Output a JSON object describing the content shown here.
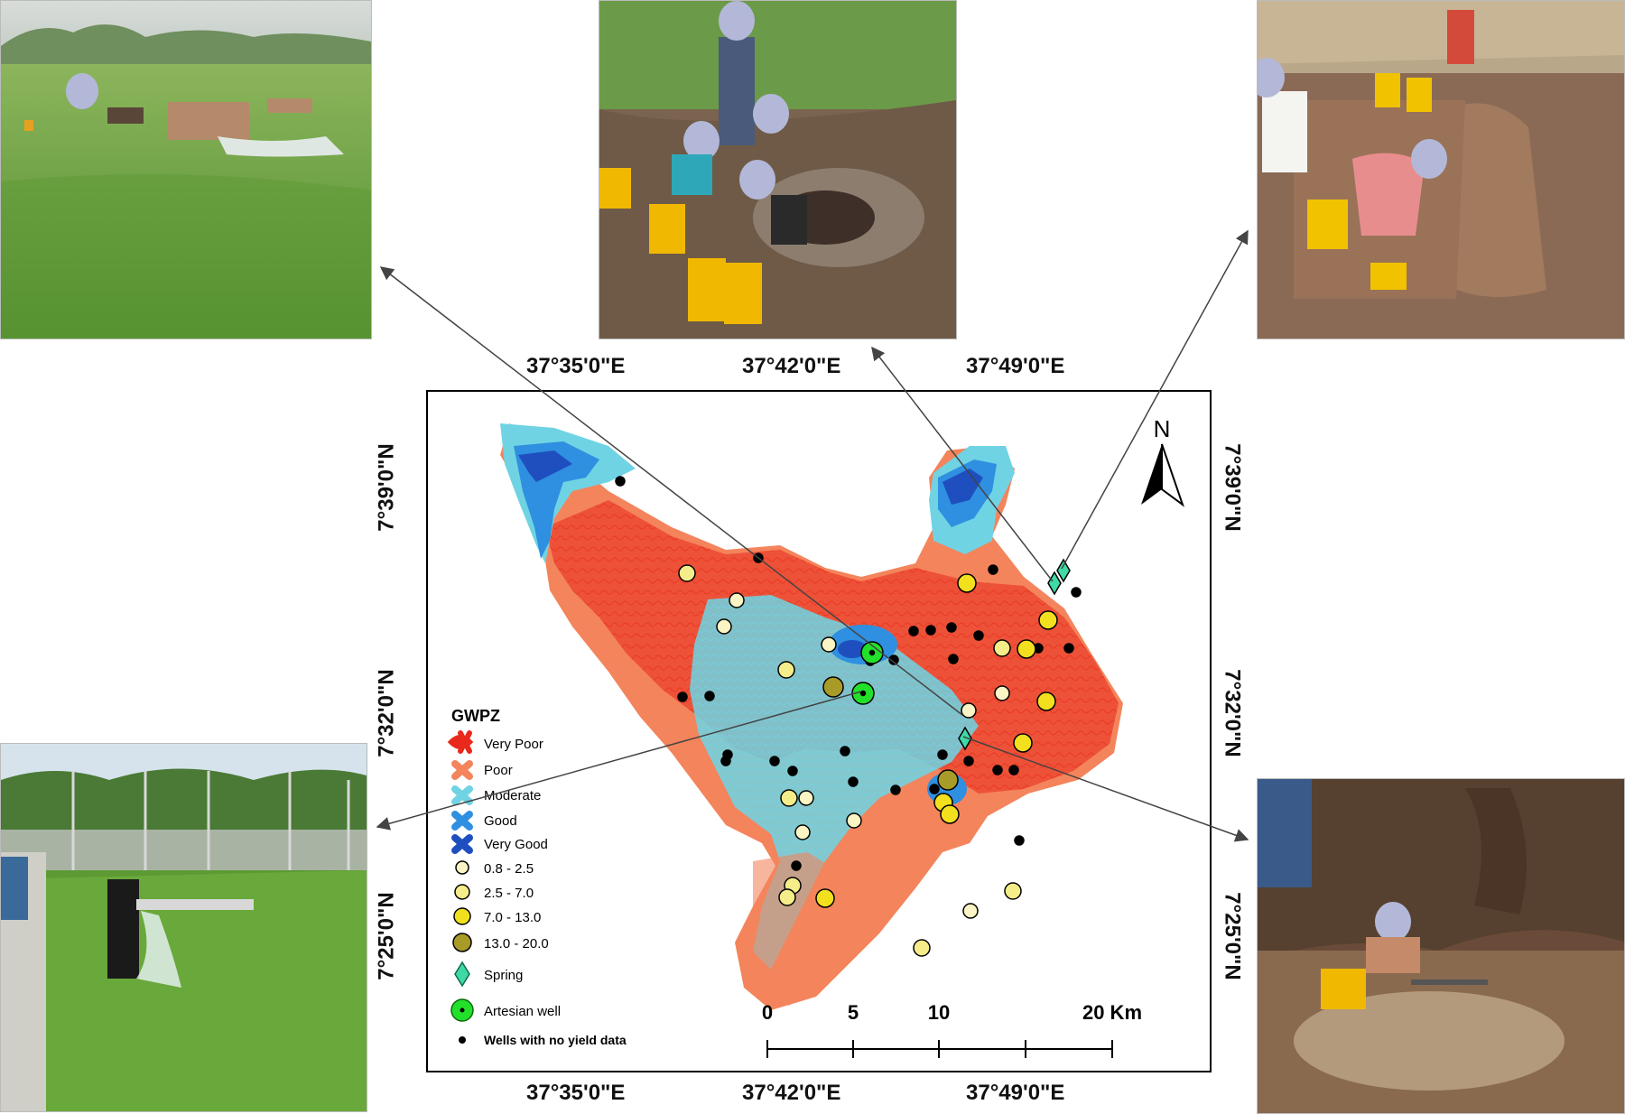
{
  "coordinates": {
    "top": [
      "37°35'0\"E",
      "37°42'0\"E",
      "37°49'0\"E"
    ],
    "bottom": [
      "37°35'0\"E",
      "37°42'0\"E",
      "37°49'0\"E"
    ],
    "left": [
      "7°39'0\"N",
      "7°32'0\"N",
      "7°25'0\"N"
    ],
    "right": [
      "7°39'0\"N",
      "7°32'0\"N",
      "7°25'0\"N"
    ]
  },
  "north_arrow": {
    "label": "N"
  },
  "legend": {
    "title": "GWPZ",
    "zones": [
      {
        "label": "Very Poor",
        "color": "#e8291c"
      },
      {
        "label": "Poor",
        "color": "#f4845c"
      },
      {
        "label": "Moderate",
        "color": "#6fd3e3"
      },
      {
        "label": "Good",
        "color": "#2f8fe0"
      },
      {
        "label": "Very Good",
        "color": "#1f4fbf"
      }
    ],
    "yield_classes": [
      {
        "label": "0.8 - 2.5",
        "color": "#fbf4c4"
      },
      {
        "label": "2.5 - 7.0",
        "color": "#f5ec8a"
      },
      {
        "label": "7.0 - 13.0",
        "color": "#f2df1e"
      },
      {
        "label": "13.0 - 20.0",
        "color": "#a99b28"
      }
    ],
    "spring": {
      "label": "Spring",
      "color": "#3fd9a6"
    },
    "artesian": {
      "label": "Artesian well",
      "color": "#22e02a"
    },
    "no_yield": {
      "label": "Wells with no yield data",
      "color": "#000000"
    }
  },
  "scale_bar": {
    "labels": [
      "0",
      "5",
      "10",
      "20 Km"
    ]
  },
  "photos": [
    {
      "name": "photo-spring-field",
      "description": ""
    },
    {
      "name": "photo-hand-dug-well",
      "description": ""
    },
    {
      "name": "photo-spring-collection",
      "description": ""
    },
    {
      "name": "photo-artesian-pipe",
      "description": ""
    },
    {
      "name": "photo-spring-pool",
      "description": ""
    }
  ],
  "wells": [
    {
      "yield": "2.5 - 7.0"
    }
  ]
}
